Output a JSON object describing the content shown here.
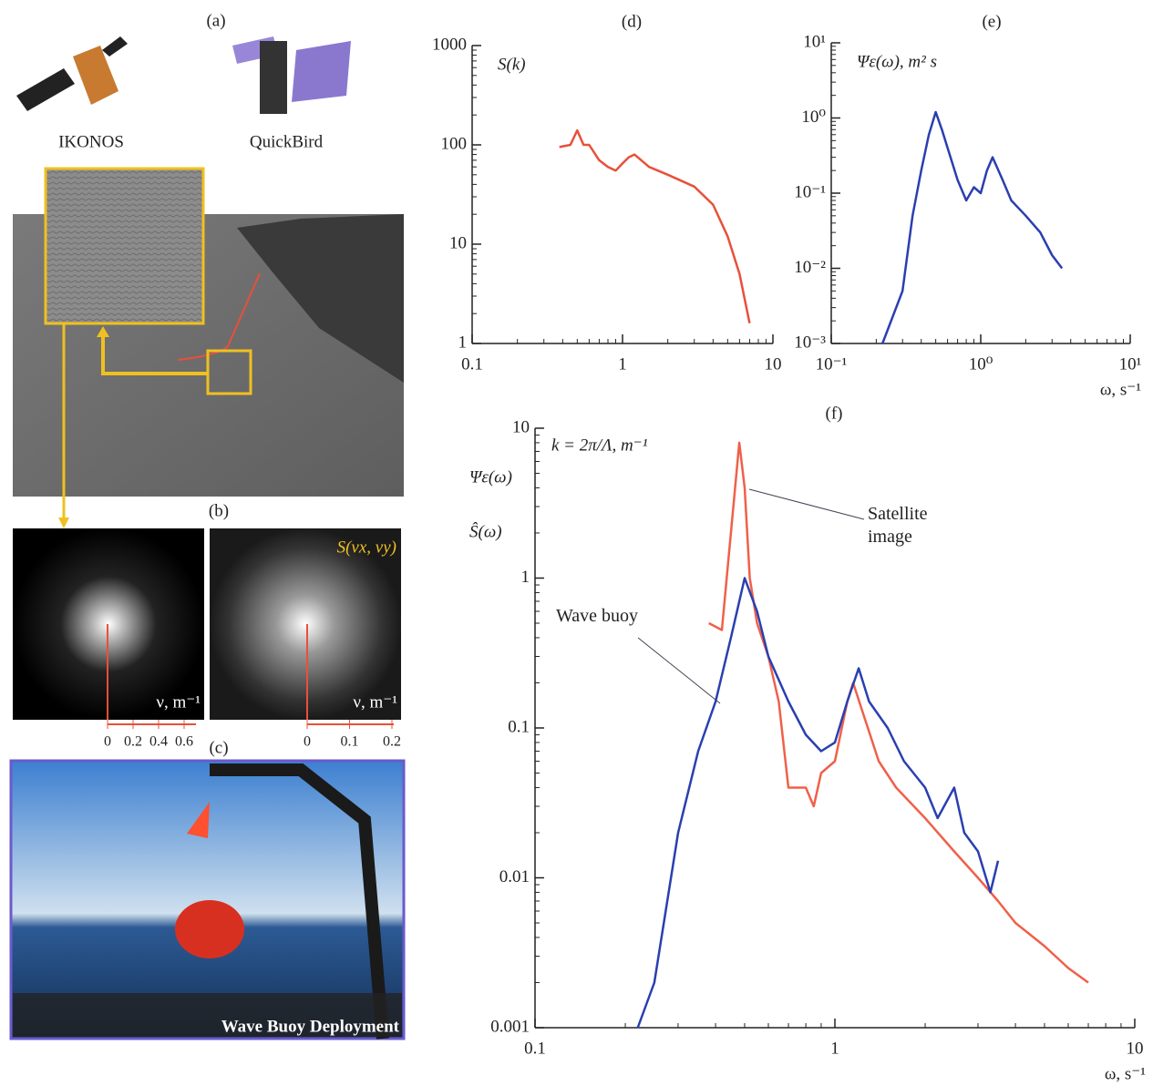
{
  "panels": {
    "a": {
      "label": "(a)",
      "satellites": [
        "IKONOS",
        "QuickBird"
      ]
    },
    "b": {
      "label": "(b)",
      "spectrum_label": "S(νx, νy)",
      "axis_label": "ν, m⁻¹",
      "ticks_left": [
        0,
        0.2,
        0.4,
        0.6
      ],
      "ticks_right": [
        0,
        0.1,
        0.2
      ]
    },
    "c": {
      "label": "(c)",
      "caption": "Wave Buoy Deployment"
    }
  },
  "chart_data": [
    {
      "type": "line",
      "title": "(d)",
      "ylabel": "S(k)",
      "log_x": true,
      "log_y": true,
      "xlim": [
        0.1,
        10
      ],
      "xticks": [
        0.1,
        1,
        10
      ],
      "ylim": [
        1,
        1000
      ],
      "yticks": [
        1,
        10,
        100,
        1000
      ],
      "color": "#e8503a",
      "x": [
        0.38,
        0.45,
        0.5,
        0.55,
        0.6,
        0.7,
        0.8,
        0.9,
        1.0,
        1.1,
        1.2,
        1.5,
        2,
        3,
        4,
        5,
        6,
        7
      ],
      "values": [
        95,
        100,
        140,
        100,
        100,
        70,
        60,
        55,
        65,
        75,
        80,
        60,
        50,
        38,
        25,
        12,
        5,
        1.6
      ]
    },
    {
      "type": "line",
      "title": "(e)",
      "ylabel": "Ψε(ω), m² s",
      "xlabel": "ω, s⁻¹",
      "log_x": true,
      "log_y": true,
      "xlim": [
        0.1,
        10
      ],
      "xticks": [
        {
          "value": 0.1,
          "label": "10⁻¹"
        },
        {
          "value": 1,
          "label": "10⁰"
        },
        {
          "value": 10,
          "label": "10¹"
        }
      ],
      "ylim": [
        0.001,
        10
      ],
      "yticks": [
        {
          "value": 0.001,
          "label": "10⁻³"
        },
        {
          "value": 0.01,
          "label": "10⁻²"
        },
        {
          "value": 0.1,
          "label": "10⁻¹"
        },
        {
          "value": 1,
          "label": "10⁰"
        },
        {
          "value": 10,
          "label": "10¹"
        }
      ],
      "color": "#2a3fb0",
      "x": [
        0.22,
        0.3,
        0.35,
        0.4,
        0.45,
        0.5,
        0.55,
        0.6,
        0.7,
        0.8,
        0.9,
        1.0,
        1.1,
        1.2,
        1.4,
        1.6,
        2,
        2.5,
        3,
        3.5
      ],
      "values": [
        0.001,
        0.005,
        0.05,
        0.2,
        0.6,
        1.2,
        0.7,
        0.4,
        0.15,
        0.08,
        0.12,
        0.1,
        0.2,
        0.3,
        0.15,
        0.08,
        0.05,
        0.03,
        0.015,
        0.01
      ]
    },
    {
      "type": "line",
      "title": "(f)",
      "ylabel": [
        "Ψε(ω)",
        "Ŝ(ω)"
      ],
      "annotation": "k = 2π/Λ, m⁻¹",
      "xlabel": "ω, s⁻¹",
      "log_x": true,
      "log_y": true,
      "xlim": [
        0.1,
        10
      ],
      "xticks": [
        0.1,
        1,
        10
      ],
      "ylim": [
        0.001,
        10
      ],
      "yticks": [
        0.001,
        0.01,
        0.1,
        1,
        10
      ],
      "series": [
        {
          "name": "Satellite image",
          "color": "#f0604a",
          "x": [
            0.38,
            0.42,
            0.45,
            0.48,
            0.5,
            0.52,
            0.55,
            0.6,
            0.65,
            0.7,
            0.8,
            0.85,
            0.9,
            1.0,
            1.1,
            1.15,
            1.25,
            1.4,
            1.6,
            2,
            2.5,
            3,
            3.5,
            4,
            5,
            6,
            7
          ],
          "values": [
            0.5,
            0.45,
            2,
            8,
            4,
            1,
            0.5,
            0.3,
            0.15,
            0.04,
            0.04,
            0.03,
            0.05,
            0.06,
            0.15,
            0.2,
            0.12,
            0.06,
            0.04,
            0.025,
            0.015,
            0.01,
            0.007,
            0.005,
            0.0035,
            0.0025,
            0.002
          ]
        },
        {
          "name": "Wave buoy",
          "color": "#2a3fb0",
          "x": [
            0.22,
            0.25,
            0.3,
            0.35,
            0.4,
            0.45,
            0.5,
            0.55,
            0.6,
            0.7,
            0.8,
            0.9,
            1.0,
            1.1,
            1.2,
            1.3,
            1.5,
            1.7,
            2,
            2.2,
            2.5,
            2.7,
            3,
            3.3,
            3.5
          ],
          "values": [
            0.001,
            0.002,
            0.02,
            0.07,
            0.15,
            0.4,
            1,
            0.6,
            0.3,
            0.15,
            0.09,
            0.07,
            0.08,
            0.15,
            0.25,
            0.15,
            0.1,
            0.06,
            0.04,
            0.025,
            0.04,
            0.02,
            0.015,
            0.008,
            0.013
          ]
        }
      ]
    }
  ]
}
